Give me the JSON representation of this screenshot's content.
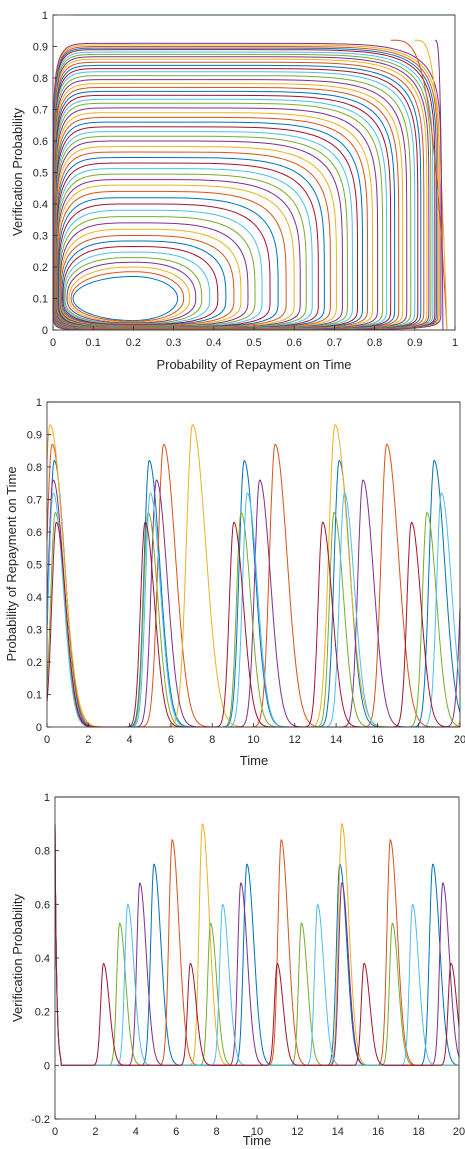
{
  "colors": [
    "#0072BD",
    "#D95319",
    "#EDB120",
    "#7E2F8E",
    "#77AC30",
    "#4DBEEE",
    "#A2142F"
  ],
  "chart_data": [
    {
      "type": "line",
      "subtype": "phase-portrait",
      "xlabel": "Probability of Repayment on Time",
      "ylabel": "Verification Probability",
      "xlim": [
        0,
        1
      ],
      "ylim": [
        0,
        1
      ],
      "xticks": [
        "0",
        "0.1",
        "0.2",
        "0.3",
        "0.4",
        "0.5",
        "0.6",
        "0.7",
        "0.8",
        "0.9",
        "1"
      ],
      "yticks": [
        "0",
        "0.1",
        "0.2",
        "0.3",
        "0.4",
        "0.5",
        "0.6",
        "0.7",
        "0.8",
        "0.9",
        "1"
      ],
      "center": [
        0.2,
        0.1
      ],
      "orbit_extents": [
        {
          "x": [
            0.05,
            0.31
          ],
          "y": [
            0.03,
            0.17
          ]
        },
        {
          "x": [
            0.03,
            0.37
          ],
          "y": [
            0.02,
            0.23
          ]
        },
        {
          "x": [
            0.02,
            0.45
          ],
          "y": [
            0.015,
            0.3
          ]
        },
        {
          "x": [
            0.015,
            0.52
          ],
          "y": [
            0.01,
            0.38
          ]
        },
        {
          "x": [
            0.01,
            0.6
          ],
          "y": [
            0.008,
            0.46
          ]
        },
        {
          "x": [
            0.008,
            0.66
          ],
          "y": [
            0.006,
            0.53
          ]
        },
        {
          "x": [
            0.006,
            0.72
          ],
          "y": [
            0.005,
            0.6
          ]
        },
        {
          "x": [
            0.005,
            0.77
          ],
          "y": [
            0.004,
            0.66
          ]
        },
        {
          "x": [
            0.004,
            0.82
          ],
          "y": [
            0.003,
            0.72
          ]
        },
        {
          "x": [
            0.003,
            0.86
          ],
          "y": [
            0.002,
            0.77
          ]
        },
        {
          "x": [
            0.002,
            0.9
          ],
          "y": [
            0.002,
            0.82
          ]
        },
        {
          "x": [
            0.002,
            0.93
          ],
          "y": [
            0.001,
            0.86
          ]
        },
        {
          "x": [
            0.001,
            0.95
          ],
          "y": [
            0.001,
            0.89
          ]
        },
        {
          "x": [
            0.001,
            0.965
          ],
          "y": [
            0.001,
            0.91
          ]
        }
      ]
    },
    {
      "type": "line",
      "xlabel": "Time",
      "ylabel": "Probability of Repayment on Time",
      "xlim": [
        0,
        20
      ],
      "ylim": [
        0,
        1
      ],
      "xticks": [
        "0",
        "2",
        "4",
        "6",
        "8",
        "10",
        "12",
        "14",
        "16",
        "18",
        "20"
      ],
      "yticks": [
        "0",
        "0.1",
        "0.2",
        "0.3",
        "0.4",
        "0.5",
        "0.6",
        "0.7",
        "0.8",
        "0.9",
        "1"
      ],
      "series": [
        {
          "period": 4.6,
          "first_peak": 0.35,
          "peak": 0.82,
          "width": 0.45
        },
        {
          "period": 5.4,
          "first_peak": 0.25,
          "peak": 0.87,
          "width": 0.5
        },
        {
          "period": 6.9,
          "first_peak": 0.15,
          "peak": 0.93,
          "width": 0.55
        },
        {
          "period": 5.0,
          "first_peak": 0.3,
          "peak": 0.76,
          "width": 0.45
        },
        {
          "period": 4.5,
          "first_peak": 0.4,
          "peak": 0.66,
          "width": 0.4
        },
        {
          "period": 4.7,
          "first_peak": 0.3,
          "peak": 0.72,
          "width": 0.42
        },
        {
          "period": 4.3,
          "first_peak": 0.45,
          "peak": 0.63,
          "width": 0.4
        }
      ]
    },
    {
      "type": "line",
      "xlabel": "Time",
      "ylabel": "Verification Probability",
      "xlim": [
        0,
        20
      ],
      "ylim": [
        -0.2,
        1
      ],
      "xticks": [
        "0",
        "2",
        "4",
        "6",
        "8",
        "10",
        "12",
        "14",
        "16",
        "18",
        "20"
      ],
      "yticks": [
        "-0.2",
        "0",
        "0.2",
        "0.4",
        "0.6",
        "0.8",
        "1"
      ],
      "series": [
        {
          "period": 4.6,
          "first_peak": 4.9,
          "peak": 0.75,
          "width": 0.3
        },
        {
          "period": 5.4,
          "first_peak": 5.8,
          "peak": 0.84,
          "width": 0.3
        },
        {
          "period": 6.9,
          "first_peak": 7.3,
          "peak": 0.9,
          "width": 0.3
        },
        {
          "period": 5.0,
          "first_peak": 4.2,
          "peak": 0.68,
          "width": 0.28
        },
        {
          "period": 4.5,
          "first_peak": 3.2,
          "peak": 0.53,
          "width": 0.26
        },
        {
          "period": 4.7,
          "first_peak": 3.6,
          "peak": 0.6,
          "width": 0.27
        },
        {
          "period": 4.3,
          "first_peak": 2.4,
          "peak": 0.38,
          "width": 0.25
        }
      ]
    }
  ]
}
